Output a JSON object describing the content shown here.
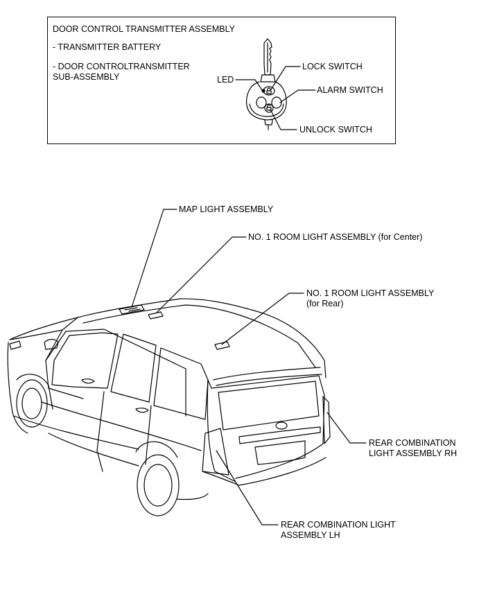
{
  "transmitter_box": {
    "title": "DOOR CONTROL TRANSMITTER ASSEMBLY",
    "item1": "- TRANSMITTER BATTERY",
    "item2_line1": "- DOOR CONTROLTRANSMITTER",
    "item2_line2": "SUB-ASSEMBLY",
    "label_led": "LED",
    "label_lock": "LOCK SWITCH",
    "label_alarm": "ALARM SWITCH",
    "label_unlock": "UNLOCK SWITCH"
  },
  "vehicle": {
    "map_light": "MAP LIGHT ASSEMBLY",
    "room_light_center": "NO. 1 ROOM LIGHT ASSEMBLY (for Center)",
    "room_light_rear_line1": "NO. 1 ROOM LIGHT ASSEMBLY",
    "room_light_rear_line2": "(for Rear)",
    "rear_rh_line1": "REAR COMBINATION",
    "rear_rh_line2": "LIGHT ASSEMBLY RH",
    "rear_lh_line1": "REAR COMBINATION LIGHT",
    "rear_lh_line2": "ASSEMBLY LH"
  }
}
